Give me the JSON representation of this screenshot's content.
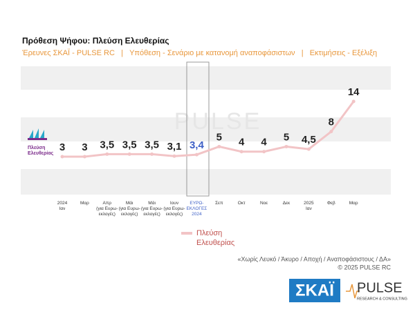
{
  "chart_data": {
    "type": "line",
    "title": "Πρόθεση Ψήφου:  Πλεύση Ελευθερίας",
    "subtitle": "Έρευνες ΣΚΑΪ - PULSE RC   |   Υπόθεση - Σενάριο με κατανομή αναποφάσιστων   |   Εκτιμήσεις - Εξέλιξη",
    "categories": [
      "2024\nΙαν",
      "Μαρ",
      "Απρ\n(για Ευρω-\nεκλογές)",
      "Μάι\n(για Ευρω-\nεκλογές)",
      "Μάι\n(για Ευρω-\nεκλογές)",
      "Ιουν\n(για Ευρω-\nεκλογές)",
      "ΕΥΡΩ-\nΕΚΛΟΓΕΣ\n2024",
      "Σεπ",
      "Οκτ",
      "Νοε",
      "Δεκ",
      "2025\nΙαν",
      "Φεβ",
      "Μαρ"
    ],
    "series": [
      {
        "name": "Πλεύση\nΕλευθερίας",
        "color": "#f2c4c6",
        "values": [
          3,
          3,
          3.5,
          3.5,
          3.5,
          3.1,
          3.4,
          5,
          4,
          4,
          5,
          4.5,
          8,
          14
        ],
        "value_labels": [
          "3",
          "3",
          "3,5",
          "3,5",
          "3,5",
          "3,1",
          "3,4",
          "5",
          "4",
          "4",
          "5",
          "4,5",
          "8",
          "14"
        ]
      }
    ],
    "party_logo": "Πλεύση\nΕλευθερίας",
    "watermark": "PULSE",
    "notes": [
      "«Χωρίς Λευκό / Άκυρο / Αποχή / Αναποφάσιστους / ΔΑ»",
      "©  2025  PULSE RC"
    ],
    "logos": {
      "skai": "ΣΚΑΪ",
      "pulse": "PULSE",
      "pulse_tagline": "RESEARCH & CONSULTING"
    }
  }
}
